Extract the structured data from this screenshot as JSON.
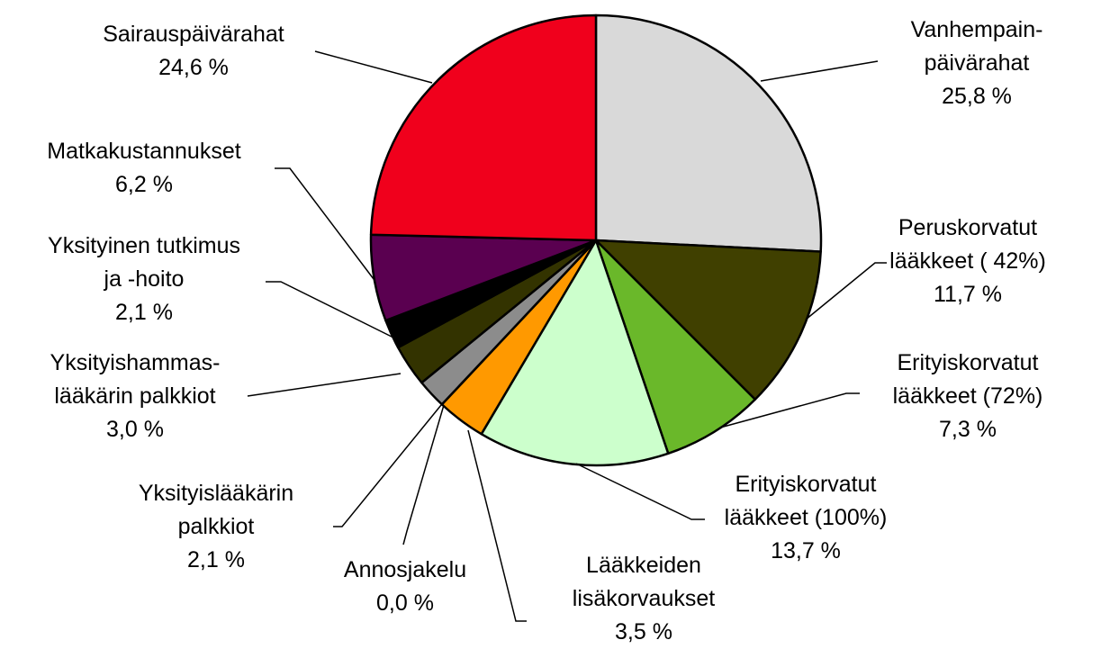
{
  "chart_data": {
    "type": "pie",
    "categories": [
      "Vanhempain-\npäivärahat",
      "Peruskorvatut\nlääkkeet ( 42%)",
      "Erityiskorvatut\nlääkkeet (72%)",
      "Erityiskorvatut\nlääkkeet (100%)",
      "Lääkkeiden\nlisäkorvaukset",
      "Annosjakelu",
      "Yksityislääkärin\npalkkiot",
      "Yksityishammas-\nlääkärin palkkiot",
      "Yksityinen tutkimus\nja -hoito",
      "Matkakustannukset",
      "Sairauspäivärahat"
    ],
    "values": [
      25.8,
      11.7,
      7.3,
      13.7,
      3.5,
      0.0,
      2.1,
      3.0,
      2.1,
      6.2,
      24.6
    ],
    "value_labels": [
      "25,8 %",
      "11,7 %",
      "7,3 %",
      "13,7 %",
      "3,5 %",
      "0,0 %",
      "2,1 %",
      "3,0 %",
      "2,1 %",
      "6,2 %",
      "24,6 %"
    ],
    "colors": [
      "#d9d9d9",
      "#404000",
      "#6ab82a",
      "#ccffcc",
      "#ff9900",
      "#ffffff",
      "#8c8c8c",
      "#333300",
      "#000000",
      "#5a0050",
      "#f0001c"
    ]
  }
}
